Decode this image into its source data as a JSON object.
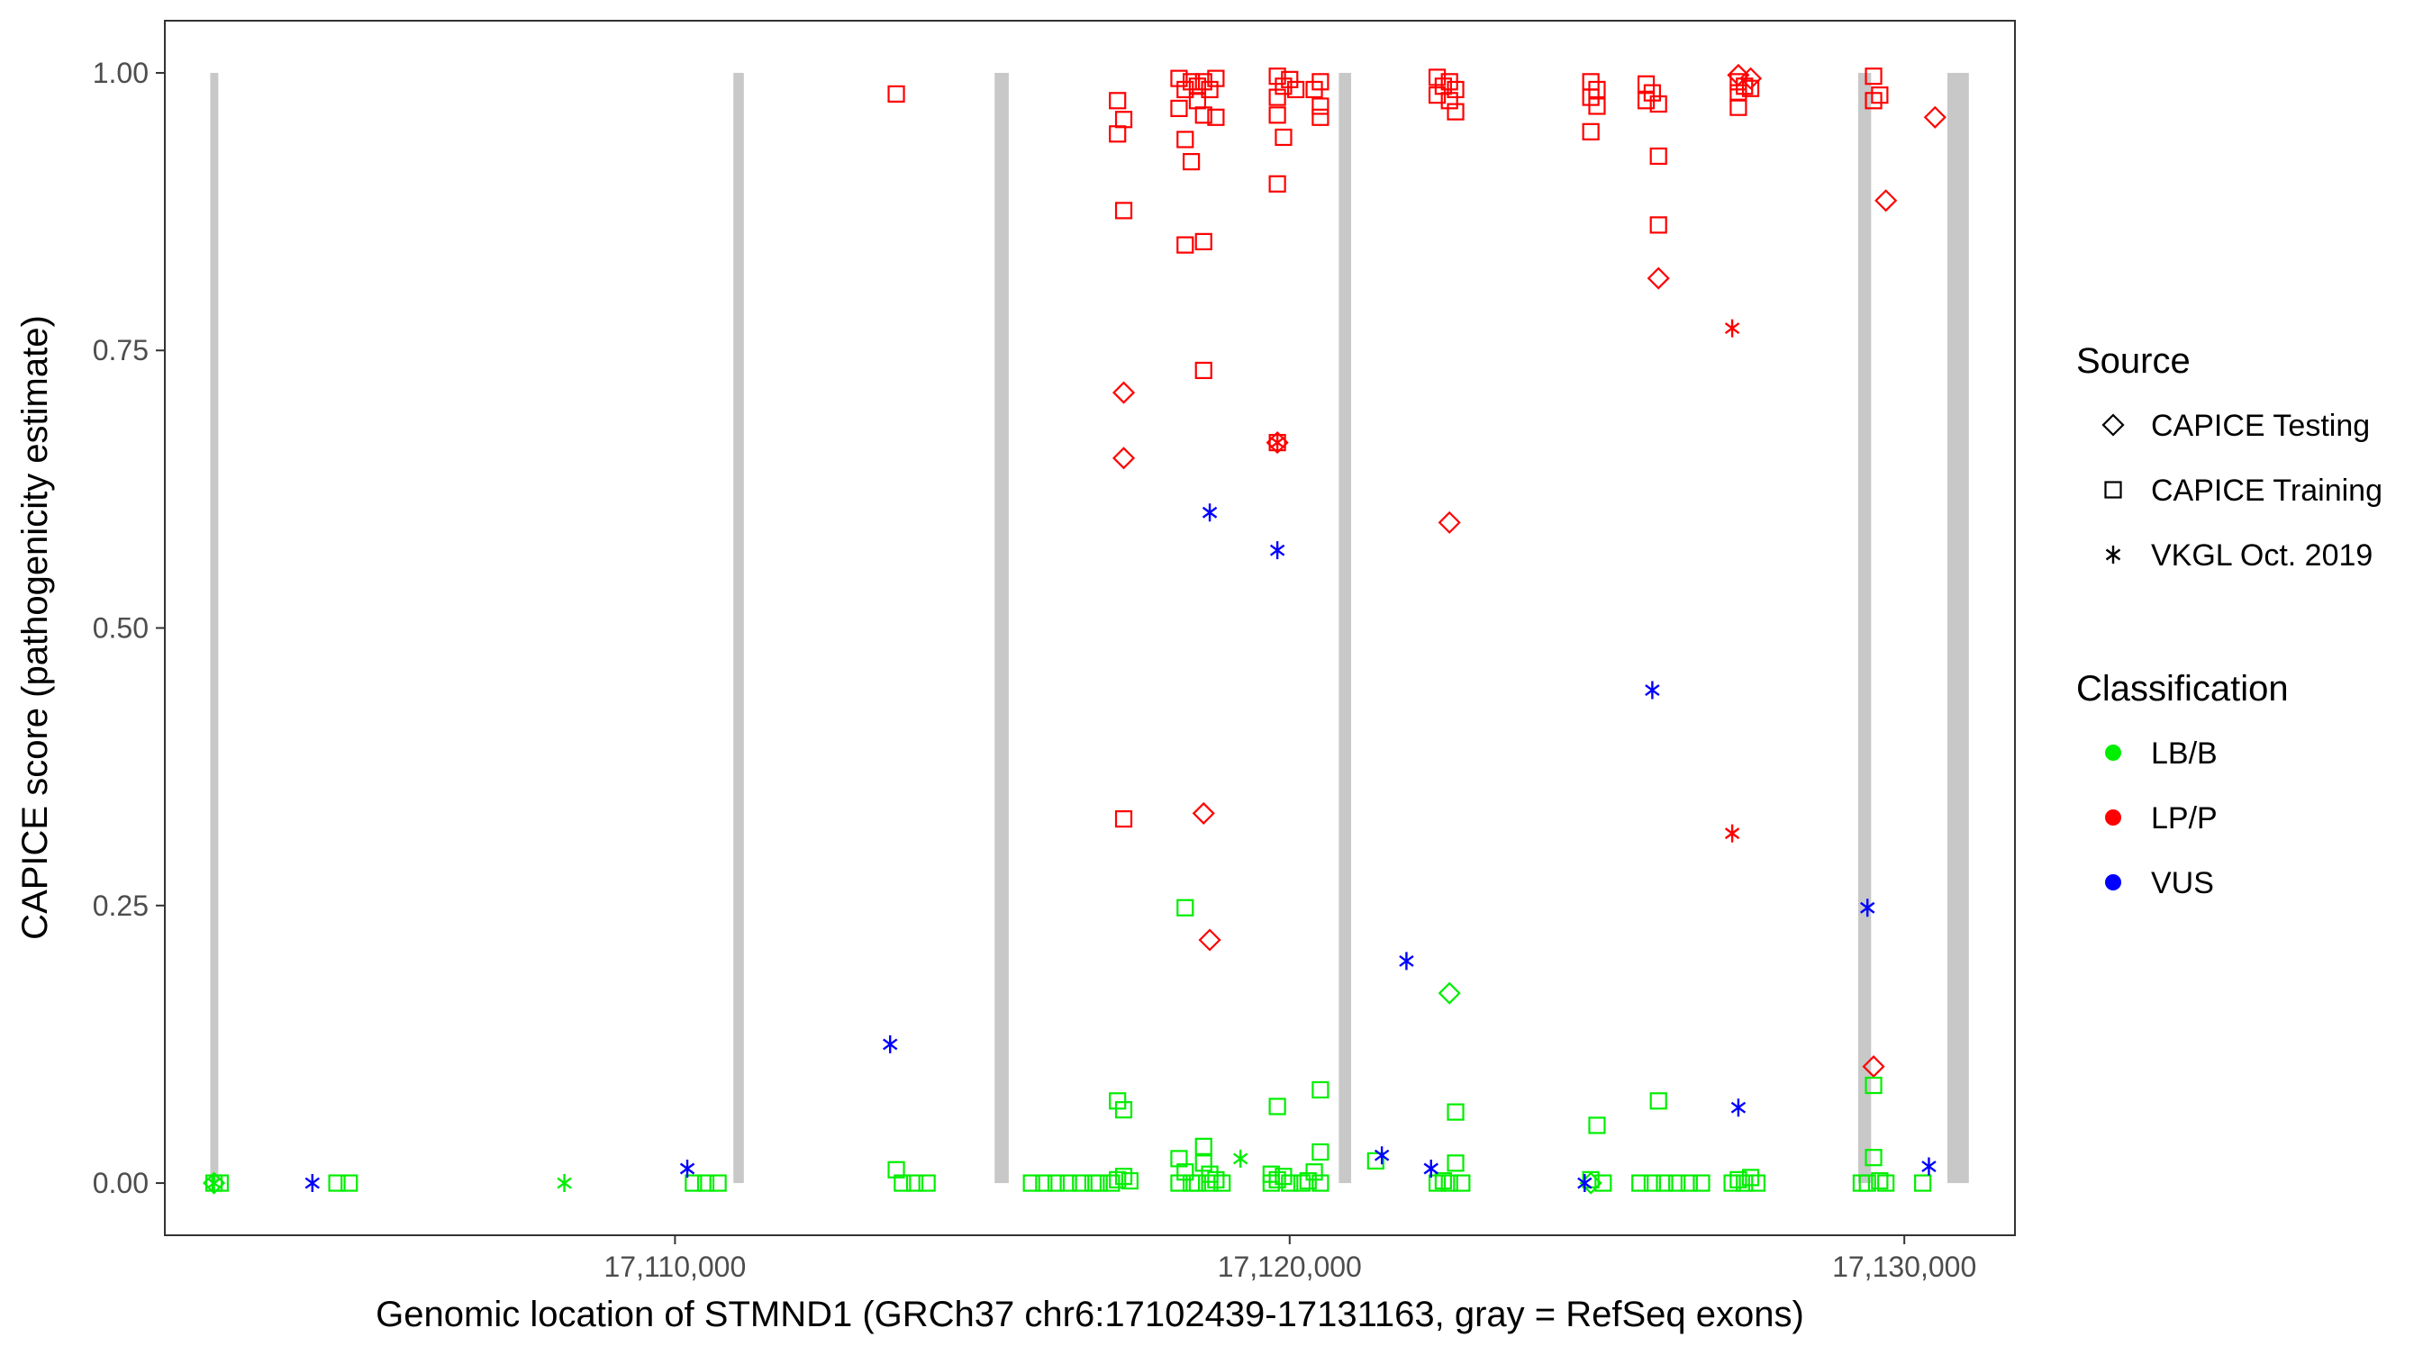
{
  "chart_data": {
    "type": "scatter",
    "title": "",
    "xlabel": "Genomic location of STMND1 (GRCh37 chr6:17102439-17131163, gray = RefSeq exons)",
    "ylabel": "CAPICE score (pathogenicity estimate)",
    "xlim": [
      17101700,
      17131800
    ],
    "ylim": [
      -0.047,
      1.047
    ],
    "x_ticks": [
      17110000,
      17120000,
      17130000
    ],
    "x_tick_labels": [
      "17,110,000",
      "17,120,000",
      "17,130,000"
    ],
    "y_ticks": [
      0,
      0.25,
      0.5,
      0.75,
      1
    ],
    "y_tick_labels": [
      "0.00",
      "0.25",
      "0.50",
      "0.75",
      "1.00"
    ],
    "grid": false,
    "exon_color": "#c8c8c8",
    "exons": [
      [
        17102439,
        17102570
      ],
      [
        17110950,
        17111120
      ],
      [
        17115200,
        17115430
      ],
      [
        17120800,
        17121000
      ],
      [
        17129250,
        17129460
      ],
      [
        17130700,
        17131050
      ]
    ],
    "legend": {
      "position": "right",
      "source_title": "Source",
      "source_items": [
        {
          "label": "CAPICE Testing",
          "shape": "diamond"
        },
        {
          "label": "CAPICE Training",
          "shape": "square"
        },
        {
          "label": "VKGL Oct. 2019",
          "shape": "asterisk"
        }
      ],
      "class_title": "Classification",
      "class_items": [
        {
          "label": "LB/B",
          "color": "#00ee00"
        },
        {
          "label": "LP/P",
          "color": "#ff0000"
        },
        {
          "label": "VUS",
          "color": "#0000ff"
        }
      ]
    },
    "colors": {
      "LB/B": "#00ee00",
      "LP/P": "#ff0000",
      "VUS": "#0000ff"
    },
    "series": [
      {
        "name": "CAPICE Testing",
        "shape": "diamond",
        "points": [
          [
            17117300,
            0.712,
            "LP/P"
          ],
          [
            17117300,
            0.653,
            "LP/P"
          ],
          [
            17118600,
            0.333,
            "LP/P"
          ],
          [
            17118700,
            0.219,
            "LP/P"
          ],
          [
            17119800,
            0.667,
            "LP/P"
          ],
          [
            17122600,
            0.595,
            "LP/P"
          ],
          [
            17122600,
            0.171,
            "LB/B"
          ],
          [
            17126000,
            0.815,
            "LP/P"
          ],
          [
            17127300,
            0.998,
            "LP/P"
          ],
          [
            17127500,
            0.995,
            "LP/P"
          ],
          [
            17129700,
            0.885,
            "LP/P"
          ],
          [
            17129500,
            0.105,
            "LP/P"
          ],
          [
            17130500,
            0.96,
            "LP/P"
          ],
          [
            17102500,
            0.0,
            "LB/B"
          ],
          [
            17124900,
            0.0,
            "LB/B"
          ]
        ]
      },
      {
        "name": "CAPICE Training",
        "shape": "square",
        "points": [
          [
            17113600,
            0.981,
            "LP/P"
          ],
          [
            17117200,
            0.975,
            "LP/P"
          ],
          [
            17117300,
            0.958,
            "LP/P"
          ],
          [
            17117200,
            0.945,
            "LP/P"
          ],
          [
            17117300,
            0.876,
            "LP/P"
          ],
          [
            17117300,
            0.328,
            "LP/P"
          ],
          [
            17118200,
            0.995,
            "LP/P"
          ],
          [
            17118400,
            0.992,
            "LP/P"
          ],
          [
            17118500,
            0.988,
            "LP/P"
          ],
          [
            17118600,
            0.992,
            "LP/P"
          ],
          [
            17118800,
            0.995,
            "LP/P"
          ],
          [
            17118300,
            0.985,
            "LP/P"
          ],
          [
            17118500,
            0.975,
            "LP/P"
          ],
          [
            17118700,
            0.985,
            "LP/P"
          ],
          [
            17118200,
            0.968,
            "LP/P"
          ],
          [
            17118600,
            0.962,
            "LP/P"
          ],
          [
            17118800,
            0.96,
            "LP/P"
          ],
          [
            17118300,
            0.94,
            "LP/P"
          ],
          [
            17118400,
            0.92,
            "LP/P"
          ],
          [
            17118300,
            0.845,
            "LP/P"
          ],
          [
            17118600,
            0.848,
            "LP/P"
          ],
          [
            17118600,
            0.732,
            "LP/P"
          ],
          [
            17119800,
            0.997,
            "LP/P"
          ],
          [
            17120000,
            0.994,
            "LP/P"
          ],
          [
            17119900,
            0.988,
            "LP/P"
          ],
          [
            17119800,
            0.978,
            "LP/P"
          ],
          [
            17120100,
            0.985,
            "LP/P"
          ],
          [
            17119800,
            0.962,
            "LP/P"
          ],
          [
            17119900,
            0.942,
            "LP/P"
          ],
          [
            17119800,
            0.9,
            "LP/P"
          ],
          [
            17119800,
            0.667,
            "LP/P"
          ],
          [
            17120500,
            0.992,
            "LP/P"
          ],
          [
            17120400,
            0.985,
            "LP/P"
          ],
          [
            17120500,
            0.97,
            "LP/P"
          ],
          [
            17120500,
            0.96,
            "LP/P"
          ],
          [
            17122400,
            0.996,
            "LP/P"
          ],
          [
            17122600,
            0.992,
            "LP/P"
          ],
          [
            17122500,
            0.988,
            "LP/P"
          ],
          [
            17122700,
            0.985,
            "LP/P"
          ],
          [
            17122400,
            0.98,
            "LP/P"
          ],
          [
            17122600,
            0.975,
            "LP/P"
          ],
          [
            17122700,
            0.965,
            "LP/P"
          ],
          [
            17124900,
            0.992,
            "LP/P"
          ],
          [
            17125000,
            0.985,
            "LP/P"
          ],
          [
            17124900,
            0.978,
            "LP/P"
          ],
          [
            17125000,
            0.97,
            "LP/P"
          ],
          [
            17124900,
            0.947,
            "LP/P"
          ],
          [
            17125800,
            0.99,
            "LP/P"
          ],
          [
            17125900,
            0.982,
            "LP/P"
          ],
          [
            17125800,
            0.975,
            "LP/P"
          ],
          [
            17126000,
            0.972,
            "LP/P"
          ],
          [
            17126000,
            0.925,
            "LP/P"
          ],
          [
            17126000,
            0.863,
            "LP/P"
          ],
          [
            17127300,
            0.992,
            "LP/P"
          ],
          [
            17127400,
            0.988,
            "LP/P"
          ],
          [
            17127500,
            0.986,
            "LP/P"
          ],
          [
            17127300,
            0.982,
            "LP/P"
          ],
          [
            17127300,
            0.969,
            "LP/P"
          ],
          [
            17129500,
            0.997,
            "LP/P"
          ],
          [
            17129600,
            0.98,
            "LP/P"
          ],
          [
            17129500,
            0.975,
            "LP/P"
          ],
          [
            17102500,
            0.0,
            "LB/B"
          ],
          [
            17102600,
            0.0,
            "LB/B"
          ],
          [
            17104500,
            0.0,
            "LB/B"
          ],
          [
            17104700,
            0.0,
            "LB/B"
          ],
          [
            17110300,
            0.0,
            "LB/B"
          ],
          [
            17110500,
            0.0,
            "LB/B"
          ],
          [
            17110700,
            0.0,
            "LB/B"
          ],
          [
            17113600,
            0.012,
            "LB/B"
          ],
          [
            17113700,
            0.0,
            "LB/B"
          ],
          [
            17113900,
            0.0,
            "LB/B"
          ],
          [
            17114100,
            0.0,
            "LB/B"
          ],
          [
            17115800,
            0.0,
            "LB/B"
          ],
          [
            17116000,
            0.0,
            "LB/B"
          ],
          [
            17116200,
            0.0,
            "LB/B"
          ],
          [
            17116400,
            0.0,
            "LB/B"
          ],
          [
            17116600,
            0.0,
            "LB/B"
          ],
          [
            17116800,
            0.0,
            "LB/B"
          ],
          [
            17116900,
            0.0,
            "LB/B"
          ],
          [
            17117100,
            0.0,
            "LB/B"
          ],
          [
            17117200,
            0.003,
            "LB/B"
          ],
          [
            17117300,
            0.006,
            "LB/B"
          ],
          [
            17117400,
            0.002,
            "LB/B"
          ],
          [
            17117200,
            0.074,
            "LB/B"
          ],
          [
            17117300,
            0.066,
            "LB/B"
          ],
          [
            17118300,
            0.248,
            "LB/B"
          ],
          [
            17118200,
            0.022,
            "LB/B"
          ],
          [
            17118300,
            0.01,
            "LB/B"
          ],
          [
            17118600,
            0.033,
            "LB/B"
          ],
          [
            17118600,
            0.018,
            "LB/B"
          ],
          [
            17118700,
            0.008,
            "LB/B"
          ],
          [
            17118200,
            0.0,
            "LB/B"
          ],
          [
            17118400,
            0.0,
            "LB/B"
          ],
          [
            17118500,
            0.0,
            "LB/B"
          ],
          [
            17118700,
            0.0,
            "LB/B"
          ],
          [
            17118800,
            0.003,
            "LB/B"
          ],
          [
            17118900,
            0.0,
            "LB/B"
          ],
          [
            17119800,
            0.069,
            "LB/B"
          ],
          [
            17119700,
            0.008,
            "LB/B"
          ],
          [
            17119800,
            0.003,
            "LB/B"
          ],
          [
            17119900,
            0.006,
            "LB/B"
          ],
          [
            17120000,
            0.0,
            "LB/B"
          ],
          [
            17119700,
            0.0,
            "LB/B"
          ],
          [
            17120500,
            0.084,
            "LB/B"
          ],
          [
            17120500,
            0.028,
            "LB/B"
          ],
          [
            17120400,
            0.01,
            "LB/B"
          ],
          [
            17120300,
            0.002,
            "LB/B"
          ],
          [
            17120500,
            0.0,
            "LB/B"
          ],
          [
            17120200,
            0.0,
            "LB/B"
          ],
          [
            17121400,
            0.02,
            "LB/B"
          ],
          [
            17122700,
            0.064,
            "LB/B"
          ],
          [
            17122700,
            0.018,
            "LB/B"
          ],
          [
            17122500,
            0.002,
            "LB/B"
          ],
          [
            17122600,
            0.0,
            "LB/B"
          ],
          [
            17122400,
            0.0,
            "LB/B"
          ],
          [
            17122800,
            0.0,
            "LB/B"
          ],
          [
            17125000,
            0.052,
            "LB/B"
          ],
          [
            17124900,
            0.003,
            "LB/B"
          ],
          [
            17125100,
            0.0,
            "LB/B"
          ],
          [
            17126000,
            0.074,
            "LB/B"
          ],
          [
            17125700,
            0.0,
            "LB/B"
          ],
          [
            17125900,
            0.0,
            "LB/B"
          ],
          [
            17126100,
            0.0,
            "LB/B"
          ],
          [
            17126300,
            0.0,
            "LB/B"
          ],
          [
            17126500,
            0.0,
            "LB/B"
          ],
          [
            17126700,
            0.0,
            "LB/B"
          ],
          [
            17127200,
            0.0,
            "LB/B"
          ],
          [
            17127300,
            0.003,
            "LB/B"
          ],
          [
            17127400,
            0.0,
            "LB/B"
          ],
          [
            17127500,
            0.005,
            "LB/B"
          ],
          [
            17127600,
            0.0,
            "LB/B"
          ],
          [
            17129500,
            0.088,
            "LB/B"
          ],
          [
            17129500,
            0.023,
            "LB/B"
          ],
          [
            17129300,
            0.0,
            "LB/B"
          ],
          [
            17129400,
            0.0,
            "LB/B"
          ],
          [
            17129600,
            0.002,
            "LB/B"
          ],
          [
            17129700,
            0.0,
            "LB/B"
          ],
          [
            17130300,
            0.0,
            "LB/B"
          ]
        ]
      },
      {
        "name": "VKGL Oct. 2019",
        "shape": "asterisk",
        "points": [
          [
            17102500,
            0.0,
            "LB/B"
          ],
          [
            17104100,
            0.0,
            "VUS"
          ],
          [
            17108200,
            0.0,
            "LB/B"
          ],
          [
            17110200,
            0.013,
            "VUS"
          ],
          [
            17113500,
            0.125,
            "VUS"
          ],
          [
            17118700,
            0.604,
            "VUS"
          ],
          [
            17119200,
            0.022,
            "LB/B"
          ],
          [
            17119800,
            0.57,
            "VUS"
          ],
          [
            17119800,
            0.667,
            "LP/P"
          ],
          [
            17121500,
            0.025,
            "VUS"
          ],
          [
            17121900,
            0.2,
            "VUS"
          ],
          [
            17122300,
            0.013,
            "VUS"
          ],
          [
            17124800,
            0.0,
            "VUS"
          ],
          [
            17125900,
            0.444,
            "VUS"
          ],
          [
            17127200,
            0.77,
            "LP/P"
          ],
          [
            17127200,
            0.315,
            "LP/P"
          ],
          [
            17127300,
            0.068,
            "VUS"
          ],
          [
            17129400,
            0.248,
            "VUS"
          ],
          [
            17130400,
            0.015,
            "VUS"
          ]
        ]
      }
    ]
  }
}
